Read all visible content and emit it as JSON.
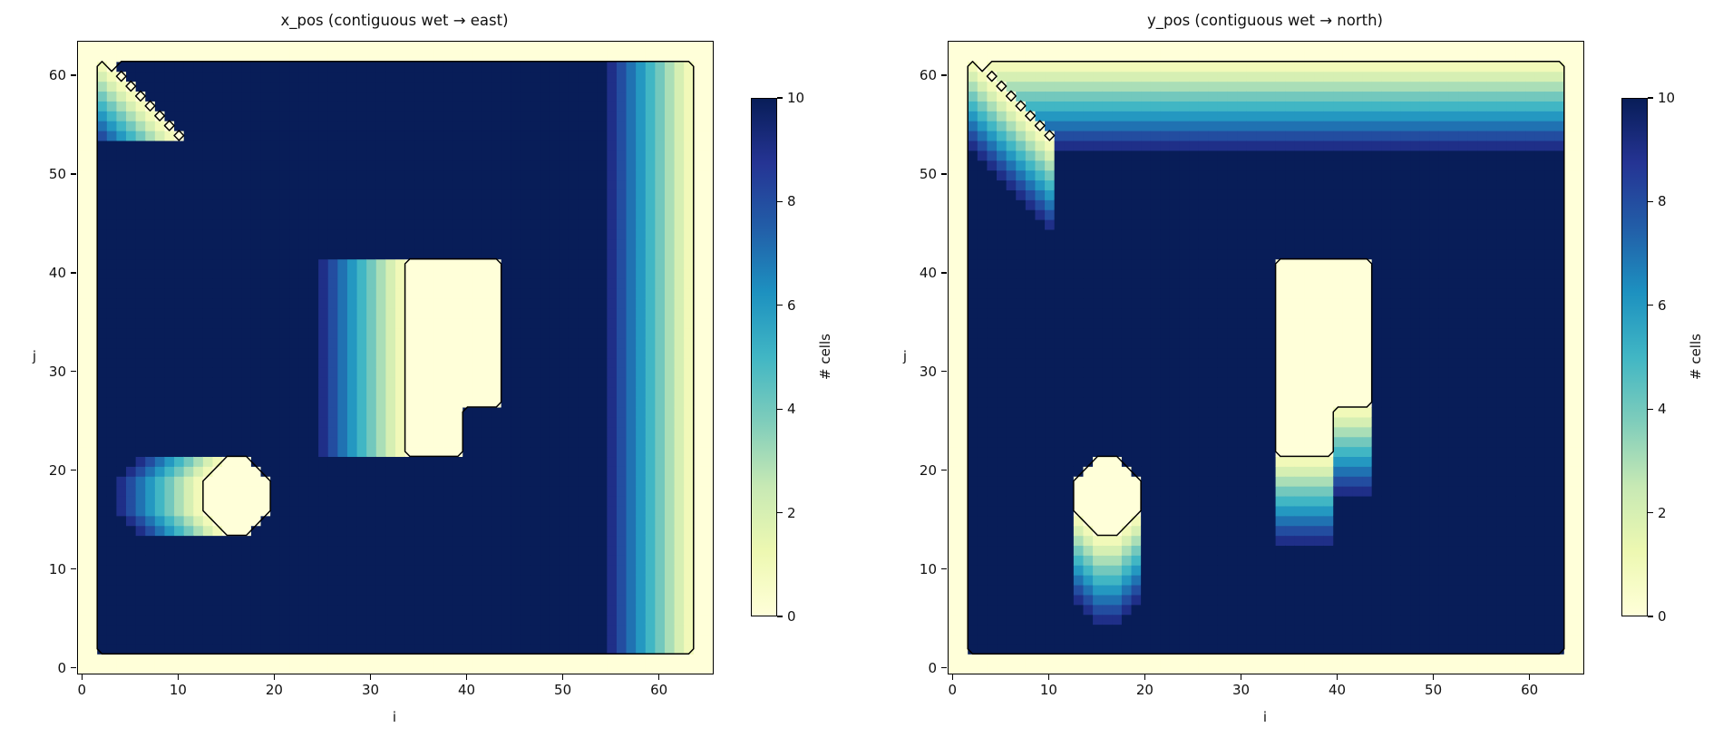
{
  "figure": {
    "background": "#ffffff",
    "text_color": "#111111"
  },
  "colormap": {
    "name": "YlGnBu",
    "anchors": [
      "#ffffd9",
      "#edf8b1",
      "#c7e9b4",
      "#7fcdbb",
      "#41b6c4",
      "#1d91c0",
      "#225ea8",
      "#253494",
      "#081d58"
    ]
  },
  "grid": {
    "ni": 66,
    "nj": 64,
    "wall_thickness": 2,
    "value_cap": 10,
    "rule": "for each wet cell: value = min(number of contiguous wet cells in the count direction including the cell itself, 10); dry cells (walls and obstacles) = 0",
    "obstacles": {
      "diagonal_strip": {
        "start_i": 3,
        "start_j": 61,
        "steps": 8,
        "di": 1,
        "dj": -1
      },
      "octagon_rows": [
        {
          "j": 21,
          "i0": 15,
          "i1": 17
        },
        {
          "j": 20,
          "i0": 14,
          "i1": 18
        },
        {
          "j": 19,
          "i0": 13,
          "i1": 19
        },
        {
          "j": 18,
          "i0": 13,
          "i1": 19
        },
        {
          "j": 17,
          "i0": 13,
          "i1": 19
        },
        {
          "j": 16,
          "i0": 13,
          "i1": 19
        },
        {
          "j": 15,
          "i0": 14,
          "i1": 18
        },
        {
          "j": 14,
          "i0": 15,
          "i1": 17
        }
      ],
      "rect_main": {
        "i0": 34,
        "i1": 43,
        "j0": 27,
        "j1": 41
      },
      "rect_lower": {
        "i0": 34,
        "i1": 39,
        "j0": 22,
        "j1": 26
      }
    }
  },
  "chart_data": [
    {
      "type": "heatmap",
      "title": "x_pos (contiguous wet → east)",
      "direction": "east",
      "xlabel": "i",
      "ylabel": "j",
      "x_ticks": [
        0,
        10,
        20,
        30,
        40,
        50,
        60
      ],
      "y_ticks": [
        0,
        10,
        20,
        30,
        40,
        50,
        60
      ],
      "colorbar": {
        "label": "# cells",
        "ticks": [
          0,
          2,
          4,
          6,
          8,
          10
        ],
        "vmin": 0,
        "vmax": 10
      }
    },
    {
      "type": "heatmap",
      "title": "y_pos (contiguous wet → north)",
      "direction": "north",
      "xlabel": "i",
      "ylabel": "j",
      "x_ticks": [
        0,
        10,
        20,
        30,
        40,
        50,
        60
      ],
      "y_ticks": [
        0,
        10,
        20,
        30,
        40,
        50,
        60
      ],
      "colorbar": {
        "label": "# cells",
        "ticks": [
          0,
          2,
          4,
          6,
          8,
          10
        ],
        "vmin": 0,
        "vmax": 10
      }
    }
  ]
}
